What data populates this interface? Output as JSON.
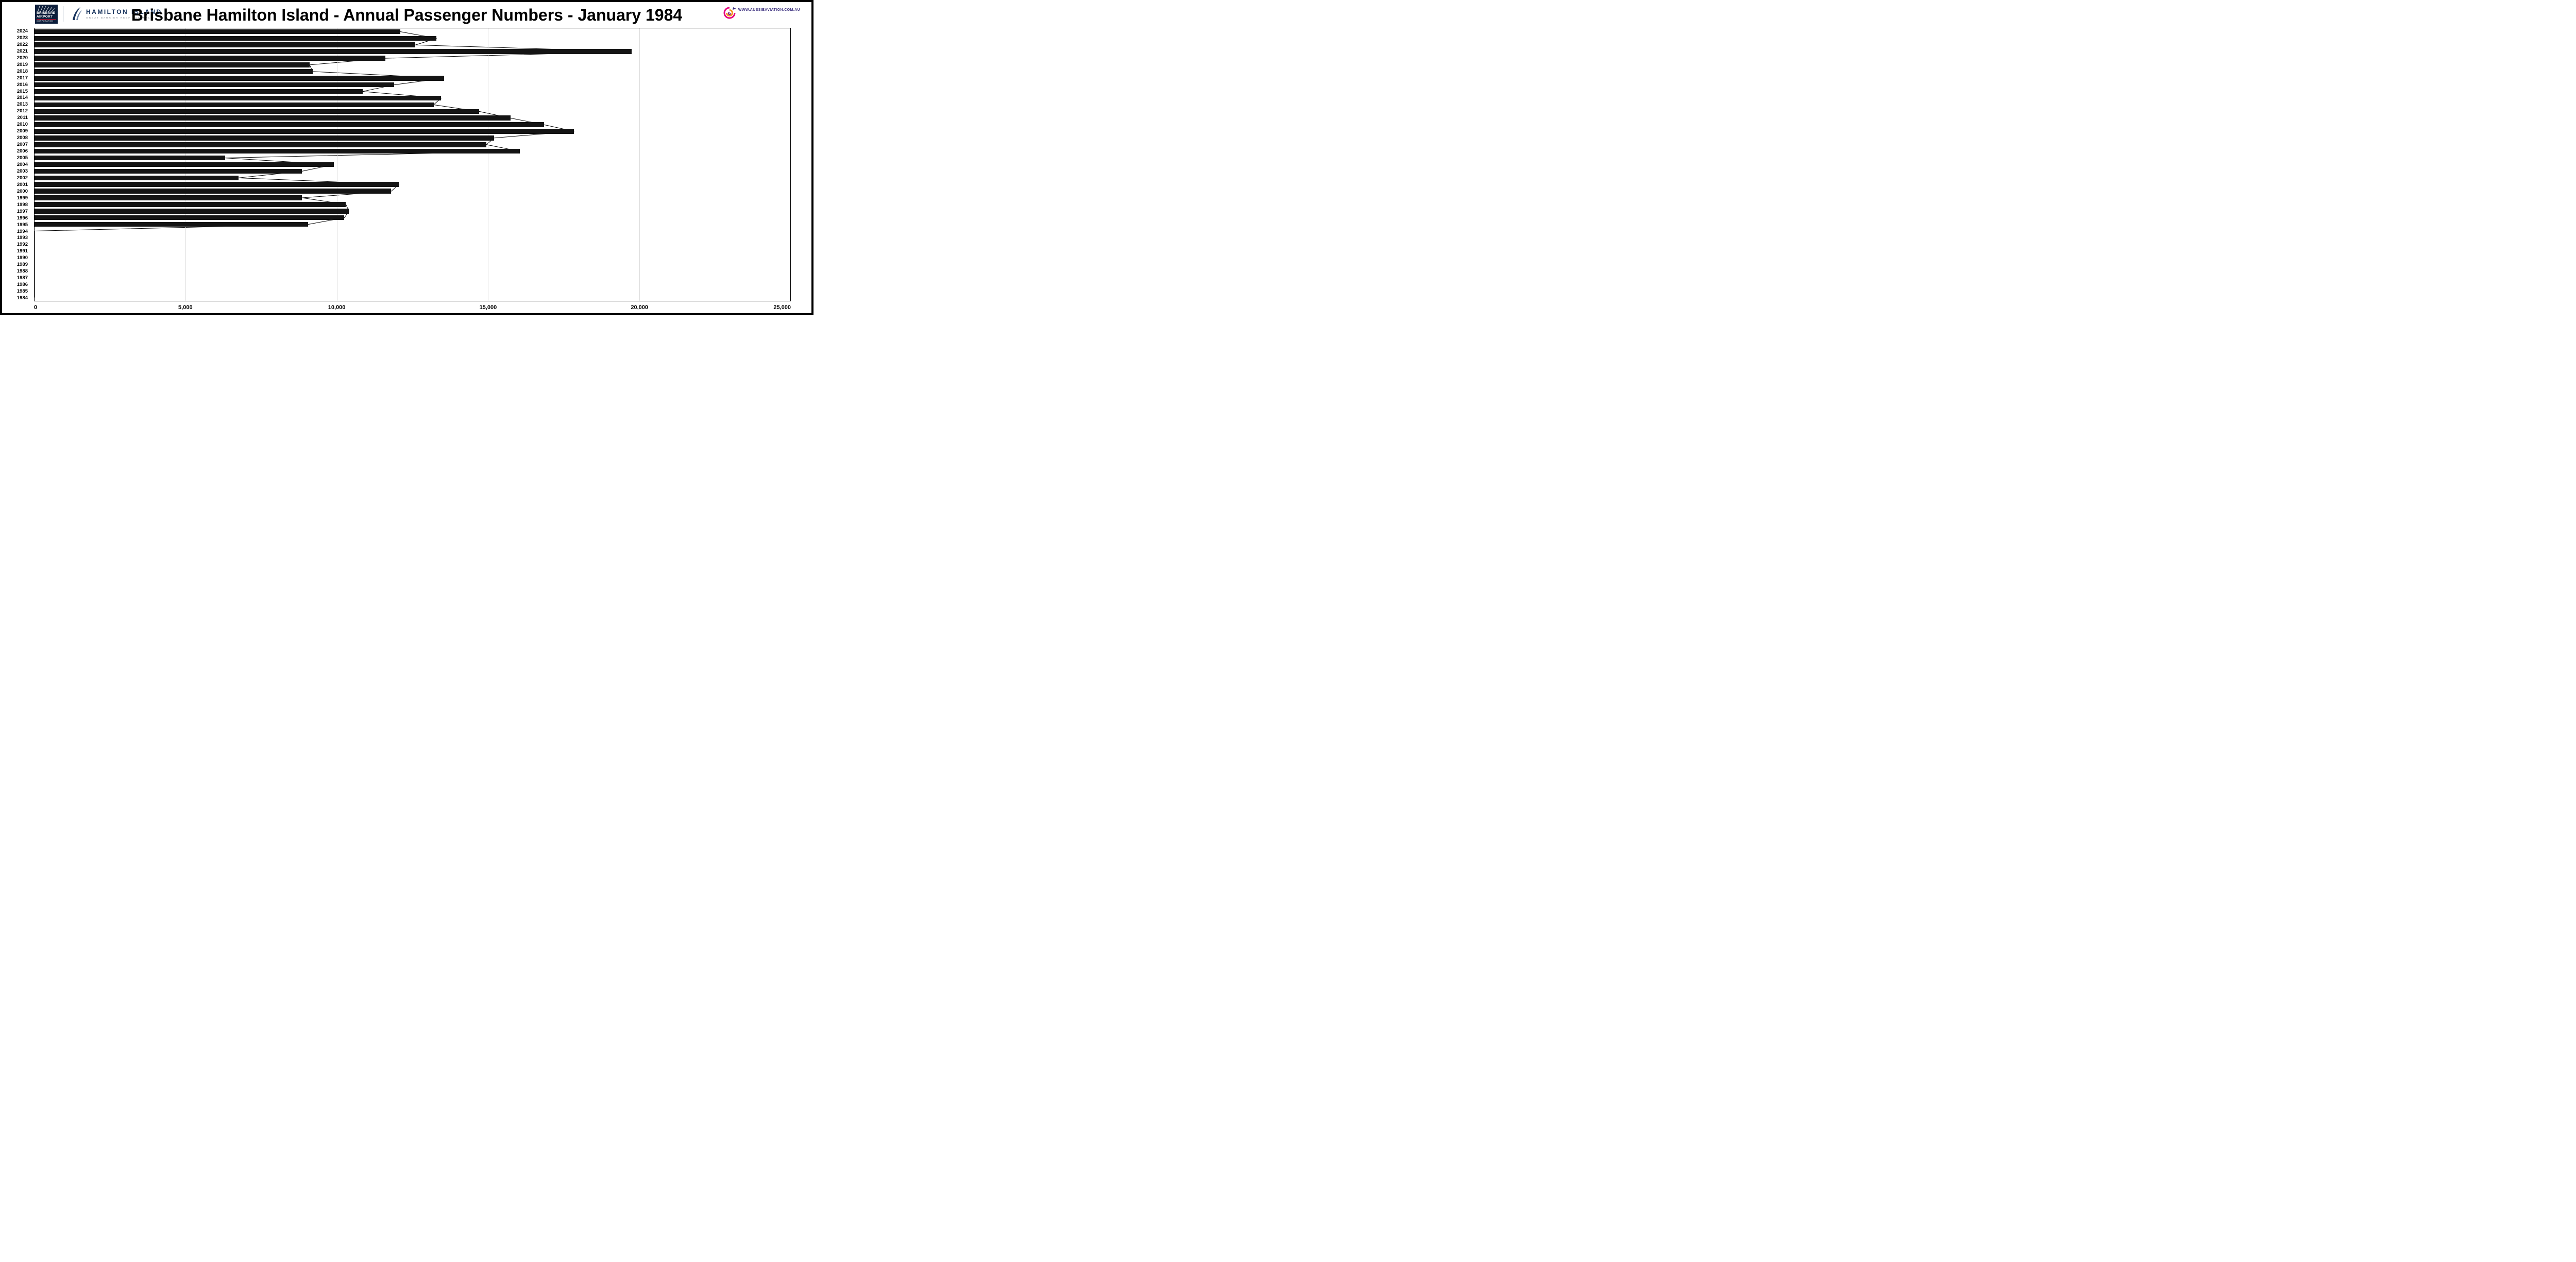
{
  "header": {
    "title": "Brisbane Hamilton Island - Annual Passenger Numbers - January 1984",
    "brisbane_airport_logo": {
      "line1": "BRISBANE",
      "line2": "AIRPORT",
      "line3": "CORPORATION"
    },
    "hamilton_island_logo": {
      "name": "HAMILTON ISLAND",
      "tagline": "GREAT BARRIER REEF AUSTRALIA"
    },
    "aussie_aviation_logo": {
      "url": "WWW.AUSSIEAVIATION.COM.AU"
    }
  },
  "chart_data": {
    "type": "bar",
    "orientation": "horizontal",
    "title": "Brisbane Hamilton Island - Annual Passenger Numbers - January 1984",
    "categories": [
      "2024",
      "2023",
      "2022",
      "2021",
      "2020",
      "2019",
      "2018",
      "2017",
      "2016",
      "2015",
      "2014",
      "2013",
      "2012",
      "2011",
      "2010",
      "2009",
      "2008",
      "2007",
      "2006",
      "2005",
      "2004",
      "2003",
      "2002",
      "2001",
      "2000",
      "1999",
      "1998",
      "1997",
      "1996",
      "1995",
      "1994",
      "1993",
      "1992",
      "1991",
      "1990",
      "1989",
      "1988",
      "1987",
      "1986",
      "1985",
      "1984"
    ],
    "values": [
      12100,
      13300,
      12600,
      19750,
      11600,
      9100,
      9200,
      13550,
      11900,
      10850,
      13450,
      13200,
      14700,
      15750,
      16850,
      17850,
      15200,
      14950,
      16050,
      6300,
      9900,
      8850,
      6750,
      12050,
      11800,
      8850,
      10300,
      10400,
      10250,
      9050,
      0,
      0,
      0,
      0,
      0,
      0,
      0,
      0,
      0,
      0,
      0
    ],
    "xlim": [
      0,
      25000
    ],
    "x_ticks": [
      0,
      5000,
      10000,
      15000,
      20000,
      25000
    ],
    "x_tick_labels": [
      "0",
      "5,000",
      "10,000",
      "15,000",
      "20,000",
      "25,000"
    ],
    "bar_color": "#141414",
    "line_overlay": true,
    "grid": "vertical",
    "legend": "none"
  }
}
